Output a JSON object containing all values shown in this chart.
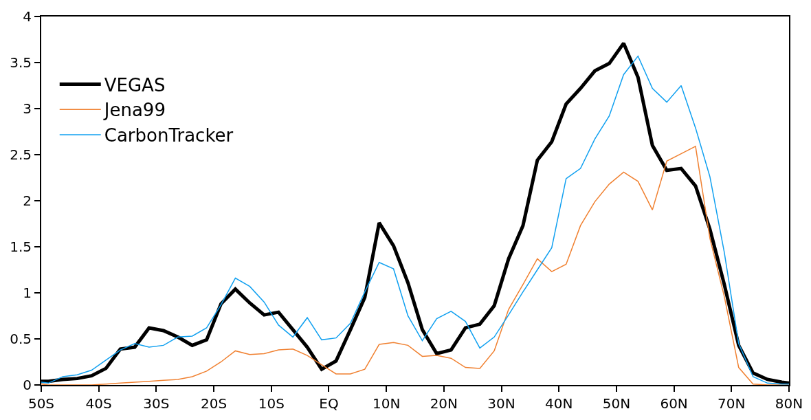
{
  "chart_data": {
    "type": "line",
    "x": [
      -50,
      -48.75,
      -46.25,
      -43.75,
      -41.25,
      -38.75,
      -36.25,
      -33.75,
      -31.25,
      -28.75,
      -26.25,
      -23.75,
      -21.25,
      -18.75,
      -16.25,
      -13.75,
      -11.25,
      -8.75,
      -6.25,
      -3.75,
      -1.25,
      1.25,
      3.75,
      6.25,
      8.75,
      11.25,
      13.75,
      16.25,
      18.75,
      21.25,
      23.75,
      26.25,
      28.75,
      31.25,
      33.75,
      36.25,
      38.75,
      41.25,
      43.75,
      46.25,
      48.75,
      51.25,
      53.75,
      56.25,
      58.75,
      61.25,
      63.75,
      66.25,
      68.75,
      71.25,
      73.75,
      76.25,
      78.75,
      80
    ],
    "series": [
      {
        "name": "VEGAS",
        "color": "#000000",
        "values": [
          0.04,
          0.04,
          0.06,
          0.07,
          0.1,
          0.18,
          0.39,
          0.41,
          0.62,
          0.59,
          0.52,
          0.43,
          0.49,
          0.88,
          1.04,
          0.89,
          0.76,
          0.79,
          0.6,
          0.41,
          0.17,
          0.26,
          0.6,
          0.95,
          1.76,
          1.51,
          1.11,
          0.6,
          0.34,
          0.38,
          0.62,
          0.66,
          0.86,
          1.37,
          1.73,
          2.44,
          2.64,
          3.05,
          3.22,
          3.41,
          3.49,
          3.71,
          3.34,
          2.6,
          2.33,
          2.35,
          2.16,
          1.69,
          1.09,
          0.43,
          0.13,
          0.06,
          0.03,
          0.02
        ]
      },
      {
        "name": "Jena99",
        "color": "#f08030",
        "values": [
          0.01,
          0.0,
          0.0,
          0.0,
          0.0,
          0.01,
          0.02,
          0.03,
          0.04,
          0.05,
          0.06,
          0.09,
          0.15,
          0.25,
          0.37,
          0.33,
          0.34,
          0.38,
          0.39,
          0.32,
          0.22,
          0.12,
          0.12,
          0.17,
          0.44,
          0.46,
          0.43,
          0.31,
          0.32,
          0.29,
          0.19,
          0.18,
          0.37,
          0.82,
          1.09,
          1.37,
          1.23,
          1.31,
          1.73,
          1.99,
          2.18,
          2.31,
          2.21,
          1.9,
          2.43,
          2.51,
          2.59,
          1.59,
          0.96,
          0.19,
          0.01,
          0.0,
          0.0,
          0.0
        ]
      },
      {
        "name": "CarbonTracker",
        "color": "#10a0f0",
        "values": [
          0.03,
          0.02,
          0.09,
          0.11,
          0.16,
          0.27,
          0.38,
          0.45,
          0.41,
          0.43,
          0.52,
          0.53,
          0.62,
          0.87,
          1.16,
          1.07,
          0.9,
          0.65,
          0.52,
          0.73,
          0.49,
          0.51,
          0.67,
          1.01,
          1.33,
          1.26,
          0.75,
          0.48,
          0.72,
          0.8,
          0.69,
          0.4,
          0.52,
          0.76,
          1.01,
          1.25,
          1.49,
          2.24,
          2.35,
          2.67,
          2.92,
          3.37,
          3.57,
          3.22,
          3.07,
          3.25,
          2.79,
          2.26,
          1.44,
          0.45,
          0.09,
          0.02,
          0.01,
          0.01
        ]
      }
    ],
    "xlim": [
      -50,
      80
    ],
    "xticks": [
      {
        "value": -50,
        "label": "50S"
      },
      {
        "value": -40,
        "label": "40S"
      },
      {
        "value": -30,
        "label": "30S"
      },
      {
        "value": -20,
        "label": "20S"
      },
      {
        "value": -10,
        "label": "10S"
      },
      {
        "value": 0,
        "label": "EQ"
      },
      {
        "value": 10,
        "label": "10N"
      },
      {
        "value": 20,
        "label": "20N"
      },
      {
        "value": 30,
        "label": "30N"
      },
      {
        "value": 40,
        "label": "40N"
      },
      {
        "value": 50,
        "label": "50N"
      },
      {
        "value": 60,
        "label": "60N"
      },
      {
        "value": 70,
        "label": "70N"
      },
      {
        "value": 80,
        "label": "80N"
      }
    ],
    "ylim": [
      0,
      4
    ],
    "yticks": [
      0,
      0.5,
      1,
      1.5,
      2,
      2.5,
      3,
      3.5,
      4
    ],
    "legend": "top left",
    "marker": "none",
    "line_style": "solid"
  }
}
